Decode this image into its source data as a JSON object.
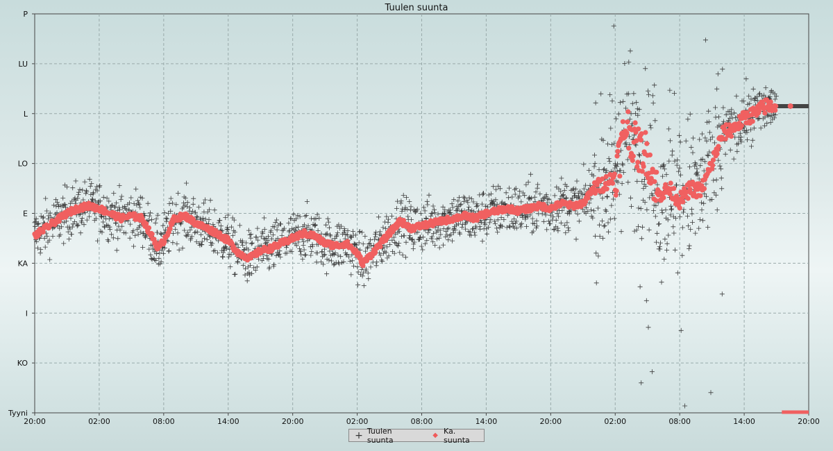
{
  "chart_data": {
    "type": "scatter",
    "title": "Tuulen suunta",
    "xlabel": "",
    "ylabel": "",
    "x_ticks": [
      "20:00",
      "02:00",
      "08:00",
      "14:00",
      "20:00",
      "02:00",
      "08:00",
      "14:00",
      "20:00",
      "02:00",
      "08:00",
      "14:00",
      "20:00"
    ],
    "y_ticks": [
      "Tyyni",
      "KO",
      "I",
      "KA",
      "E",
      "LO",
      "L",
      "LU",
      "P"
    ],
    "ylim": [
      0,
      8
    ],
    "xlim": [
      0,
      72
    ],
    "x_unit": "hours since first tick",
    "grid": true,
    "legend_position": "bottom-center",
    "series": [
      {
        "name": "Tuulen suunta",
        "marker": "plus",
        "color": "#3a3a3a",
        "description": "raw wind direction samples scattered around the average curve"
      },
      {
        "name": "Ka. suunta",
        "marker": "dot",
        "color": "#f06060",
        "points": [
          [
            0,
            3.55
          ],
          [
            1,
            3.7
          ],
          [
            2,
            3.85
          ],
          [
            3,
            4.0
          ],
          [
            4,
            4.1
          ],
          [
            5,
            4.15
          ],
          [
            6,
            4.1
          ],
          [
            7,
            4.0
          ],
          [
            8,
            3.9
          ],
          [
            9,
            3.95
          ],
          [
            10,
            3.9
          ],
          [
            11,
            3.5
          ],
          [
            11.5,
            3.3
          ],
          [
            12,
            3.45
          ],
          [
            13,
            3.9
          ],
          [
            14,
            3.95
          ],
          [
            15,
            3.8
          ],
          [
            16,
            3.7
          ],
          [
            17,
            3.6
          ],
          [
            18,
            3.45
          ],
          [
            19,
            3.2
          ],
          [
            20,
            3.1
          ],
          [
            21,
            3.25
          ],
          [
            22,
            3.3
          ],
          [
            23,
            3.4
          ],
          [
            24,
            3.5
          ],
          [
            25,
            3.6
          ],
          [
            26,
            3.55
          ],
          [
            27,
            3.4
          ],
          [
            28,
            3.35
          ],
          [
            29,
            3.4
          ],
          [
            30,
            3.2
          ],
          [
            30.5,
            3.0
          ],
          [
            31,
            3.1
          ],
          [
            32,
            3.35
          ],
          [
            33,
            3.6
          ],
          [
            34,
            3.85
          ],
          [
            35,
            3.7
          ],
          [
            36,
            3.75
          ],
          [
            37,
            3.8
          ],
          [
            38,
            3.85
          ],
          [
            39,
            3.9
          ],
          [
            40,
            3.95
          ],
          [
            41,
            3.9
          ],
          [
            42,
            4.0
          ],
          [
            43,
            4.05
          ],
          [
            44,
            4.1
          ],
          [
            45,
            4.05
          ],
          [
            46,
            4.1
          ],
          [
            47,
            4.15
          ],
          [
            48,
            4.1
          ],
          [
            49,
            4.2
          ],
          [
            50,
            4.15
          ],
          [
            51,
            4.2
          ],
          [
            52,
            4.5
          ],
          [
            53,
            4.6
          ],
          [
            54,
            4.75
          ],
          [
            55,
            5.8
          ],
          [
            56,
            5.3
          ],
          [
            57,
            5.2
          ],
          [
            58,
            4.35
          ],
          [
            59,
            4.5
          ],
          [
            60,
            4.25
          ],
          [
            61,
            4.5
          ],
          [
            62,
            4.45
          ],
          [
            63,
            5.0
          ],
          [
            64,
            5.6
          ],
          [
            65,
            5.7
          ],
          [
            66,
            5.9
          ],
          [
            67,
            6.0
          ],
          [
            68,
            6.15
          ],
          [
            69,
            6.15
          ]
        ]
      }
    ],
    "calm_segment": {
      "x_start": 69.5,
      "x_end": 72,
      "y": 0
    },
    "last_value_segment": {
      "x_start": 69,
      "x_end": 72,
      "y": 6.15
    }
  },
  "legend": {
    "item1": "Tuulen suunta",
    "item2": "Ka. suunta"
  }
}
